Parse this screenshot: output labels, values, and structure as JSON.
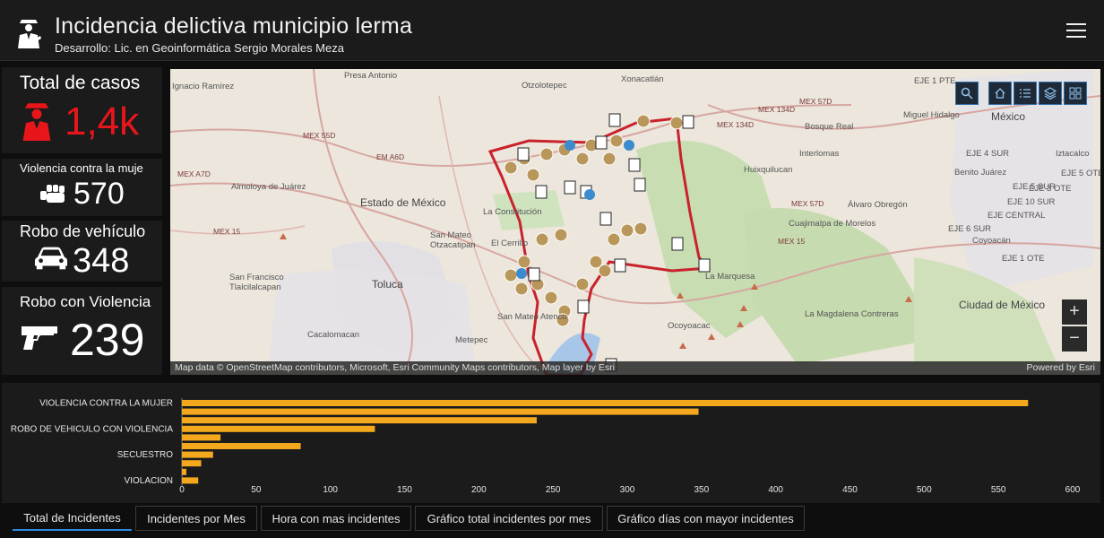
{
  "header": {
    "title": "Incidencia delictiva municipio lerma",
    "subtitle": "Desarrollo: Lic. en Geoinformática Sergio Morales Meza",
    "logo_icon": "police-officer-icon",
    "menu_icon": "hamburger-menu-icon"
  },
  "kpis": [
    {
      "title": "Total de casos",
      "value": "1,4k",
      "icon": "police-officer-icon",
      "color": "#e8161a"
    },
    {
      "title": "Violencia contra la muje",
      "value": "570",
      "icon": "fist-icon",
      "color": "#ffffff"
    },
    {
      "title": "Robo de vehículo",
      "value": "348",
      "icon": "car-icon",
      "color": "#ffffff"
    },
    {
      "title": "Robo con Violencia",
      "value": "239",
      "icon": "gun-icon",
      "color": "#ffffff"
    }
  ],
  "map": {
    "labels": [
      "Xonacatlán",
      "Otzolotepec",
      "Presa Antonio",
      "Ignacio Ramírez",
      "Almoloya de Juárez",
      "Estado de México",
      "La Constitución",
      "San Mateo Otzacatipan",
      "El Cerrillo",
      "Toluca",
      "San Francisco Tlalcilalcapan",
      "Cacalomacan",
      "Metepec",
      "San Mateo Atenco",
      "La Marquesa",
      "Ocoyoacac",
      "Huixquilucan",
      "Interlomas",
      "Bosque Real",
      "Álvaro Obregón",
      "Cuajimalpa de Morelos",
      "La Magdalena Contreras",
      "Ciudad de México",
      "México",
      "Miguel Hidalgo",
      "Benito Juárez",
      "Coyoacán",
      "Iztacalco",
      "EJE CENTRAL",
      "EJE 4 SUR",
      "EJE 5 SUR",
      "EJE 6 SUR",
      "EJE 10 SUR",
      "EJE 3 OTE",
      "EJE 5 OTE",
      "EJE 1 OTE",
      "EJE 1 PTE"
    ],
    "highways": [
      "MEX 55D",
      "EM A6D",
      "MEX A7D",
      "MEX 15",
      "MEX 134D",
      "MEX 57D",
      "MEX 57D",
      "MEX 15",
      "MEX 134D"
    ],
    "attribution": "Map data © OpenStreetMap contributors, Microsoft, Esri Community Maps contributors, Map layer by Esri",
    "powered_by": "Powered by Esri",
    "toolbar": [
      "search-icon",
      "home-icon",
      "legend-list-icon",
      "layers-icon",
      "basemap-gallery-icon"
    ],
    "zoom_in": "+",
    "zoom_out": "−"
  },
  "chart_data": {
    "type": "bar",
    "orientation": "horizontal",
    "bar_color": "#f4a81d",
    "grid": false,
    "xlim": [
      0,
      600
    ],
    "x_ticks": [
      0,
      50,
      100,
      150,
      200,
      250,
      300,
      350,
      400,
      450,
      500,
      550,
      600
    ],
    "categories": [
      "VIOLENCIA CONTRA LA MUJER",
      "",
      "",
      "ROBO DE VEHICULO CON VIOLENCIA",
      "",
      "",
      "SECUESTRO",
      "",
      "",
      "VIOLACION"
    ],
    "values": [
      570,
      348,
      239,
      130,
      26,
      80,
      21,
      13,
      3,
      11
    ]
  },
  "tabs": [
    {
      "label": "Total de Incidentes",
      "active": true
    },
    {
      "label": "Incidentes por Mes",
      "active": false
    },
    {
      "label": "Hora con mas incidentes",
      "active": false
    },
    {
      "label": "Gráfico total incidentes por mes",
      "active": false
    },
    {
      "label": "Gráfico días con mayor incidentes",
      "active": false
    }
  ]
}
